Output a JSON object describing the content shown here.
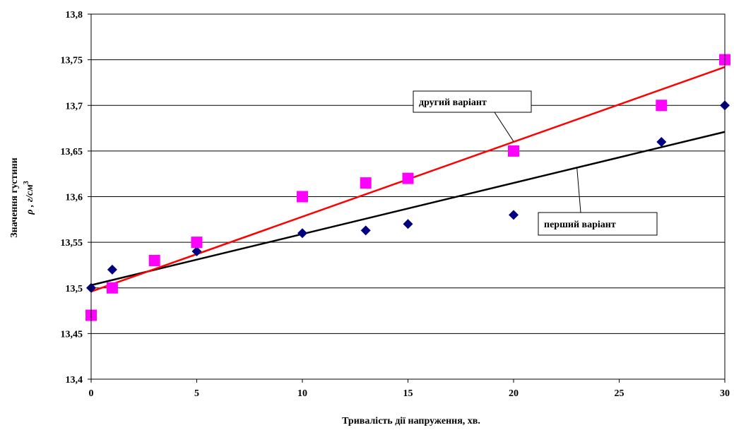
{
  "chart_data": {
    "type": "scatter",
    "xlabel": "Тривалість дії напруження, хв.",
    "ylabel_line1": "Значення густини",
    "ylabel_line2_prefix": "ρ , г/см",
    "ylabel_line2_sup": "3",
    "xlim": [
      0,
      30
    ],
    "ylim": [
      13.4,
      13.8
    ],
    "x_ticks": [
      0,
      5,
      10,
      15,
      20,
      25,
      30
    ],
    "x_tick_labels": [
      "0",
      "5",
      "10",
      "15",
      "20",
      "25",
      "30"
    ],
    "y_ticks": [
      13.4,
      13.45,
      13.5,
      13.55,
      13.6,
      13.65,
      13.7,
      13.75,
      13.8
    ],
    "y_tick_labels": [
      "13,4",
      "13,45",
      "13,5",
      "13,55",
      "13,6",
      "13,65",
      "13,7",
      "13,75",
      "13,8"
    ],
    "grid": "horizontal",
    "legend": "none",
    "series": [
      {
        "name": "перший варіант",
        "marker": "diamond",
        "color": "#000080",
        "points": [
          [
            0,
            13.5
          ],
          [
            1,
            13.52
          ],
          [
            5,
            13.54
          ],
          [
            10,
            13.56
          ],
          [
            13,
            13.563
          ],
          [
            15,
            13.57
          ],
          [
            20,
            13.58
          ],
          [
            27,
            13.66
          ],
          [
            30,
            13.7
          ]
        ],
        "trend": [
          [
            0,
            13.503
          ],
          [
            30,
            13.671
          ]
        ],
        "trend_color": "#000000"
      },
      {
        "name": "другий варіант",
        "marker": "square",
        "color": "#ff00ff",
        "points": [
          [
            0,
            13.47
          ],
          [
            1,
            13.5
          ],
          [
            3,
            13.53
          ],
          [
            5,
            13.55
          ],
          [
            10,
            13.6
          ],
          [
            13,
            13.615
          ],
          [
            15,
            13.62
          ],
          [
            20,
            13.65
          ],
          [
            27,
            13.7
          ],
          [
            30,
            13.75
          ]
        ],
        "trend": [
          [
            0,
            13.496
          ],
          [
            30,
            13.742
          ]
        ],
        "trend_color": "#ff0000"
      }
    ],
    "annotations": [
      {
        "text": "другий варіант",
        "series": 1,
        "anchor_x": 20,
        "anchor_y": 13.6604
      },
      {
        "text": "перший варіант",
        "series": 0,
        "anchor_x": 23,
        "anchor_y": 13.6317
      }
    ]
  }
}
